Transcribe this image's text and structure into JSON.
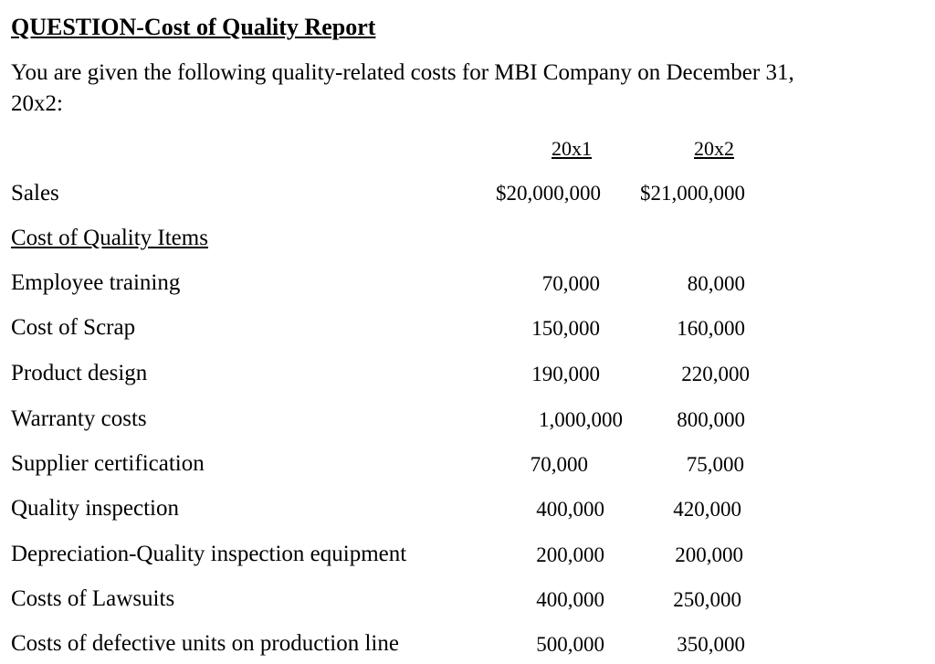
{
  "title": "QUESTION-Cost of Quality Report",
  "intro_line1": "You are given the following quality-related costs for MBI Company on December 31,",
  "intro_line2": "20x2:",
  "headers": {
    "col1": "20x1",
    "col2": "20x2"
  },
  "sales": {
    "label": "Sales",
    "v1": "$20,000,000",
    "v2": "$21,000,000"
  },
  "section_label": "Cost of Quality Items",
  "rows": [
    {
      "label": "Employee training",
      "v1": "70,000",
      "v2": "80,000"
    },
    {
      "label": "Cost of Scrap",
      "v1": "150,000",
      "v2": "160,000"
    },
    {
      "label": "Product design",
      "v1": "190,000",
      "v2": "220,000"
    },
    {
      "label": "Warranty costs",
      "v1": "1,000,000",
      "v2": "800,000"
    },
    {
      "label": "Supplier certification",
      "v1": "70,000",
      "v2": "75,000"
    },
    {
      "label": "Quality inspection",
      "v1": "400,000",
      "v2": "420,000"
    },
    {
      "label": "Depreciation-Quality inspection equipment",
      "v1": "200,000",
      "v2": "200,000"
    },
    {
      "label": "Costs of Lawsuits",
      "v1": "400,000",
      "v2": "250,000"
    },
    {
      "label": "Costs of defective units on production line",
      "v1": "500,000",
      "v2": "350,000"
    }
  ]
}
